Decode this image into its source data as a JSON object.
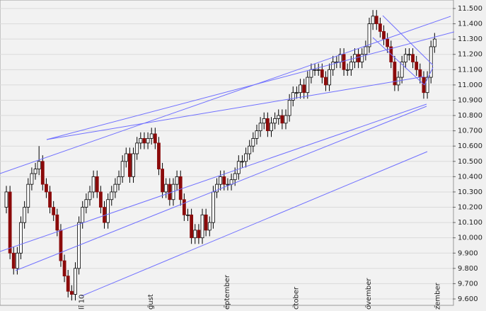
{
  "chart_data": {
    "type": "candlestick",
    "categories": [
      null,
      null,
      null,
      null,
      null,
      null,
      null,
      null,
      null,
      null,
      null,
      null,
      null,
      null,
      null,
      null,
      null,
      null,
      null,
      null,
      "li 10",
      null,
      null,
      null,
      null,
      null,
      null,
      null,
      null,
      null,
      null,
      null,
      null,
      null,
      null,
      null,
      null,
      null,
      null,
      "gust",
      null,
      null,
      null,
      null,
      null,
      null,
      null,
      null,
      null,
      null,
      null,
      null,
      null,
      null,
      null,
      null,
      null,
      null,
      null,
      null,
      "eptember",
      null,
      null,
      null,
      null,
      null,
      null,
      null,
      null,
      null,
      null,
      null,
      null,
      null,
      null,
      null,
      null,
      null,
      null,
      "ctober",
      null,
      null,
      null,
      null,
      null,
      null,
      null,
      null,
      null,
      null,
      null,
      null,
      null,
      null,
      null,
      null,
      null,
      null,
      null,
      "ovember",
      null,
      null,
      null,
      null,
      null,
      null,
      null,
      null,
      null,
      null,
      null,
      null,
      null,
      null,
      null,
      null,
      null,
      null,
      "zember"
    ],
    "open": [
      10.2,
      10.3,
      9.9,
      9.8,
      9.9,
      10.1,
      10.2,
      10.35,
      10.42,
      10.45,
      10.5,
      10.35,
      10.3,
      10.2,
      10.15,
      10.05,
      9.85,
      9.75,
      9.65,
      9.63,
      9.8,
      10.1,
      10.2,
      10.25,
      10.3,
      10.4,
      10.3,
      10.2,
      10.1,
      10.25,
      10.3,
      10.35,
      10.4,
      10.5,
      10.55,
      10.4,
      10.55,
      10.62,
      10.65,
      10.62,
      10.65,
      10.68,
      10.62,
      10.45,
      10.3,
      10.35,
      10.25,
      10.35,
      10.4,
      10.25,
      10.15,
      10.15,
      10.0,
      10.05,
      10.0,
      10.15,
      10.05,
      10.1,
      10.3,
      10.35,
      10.4,
      10.35,
      10.35,
      10.38,
      10.42,
      10.5,
      10.5,
      10.55,
      10.6,
      10.65,
      10.7,
      10.75,
      10.78,
      10.7,
      10.75,
      10.78,
      10.8,
      10.75,
      10.8,
      10.9,
      10.95,
      10.95,
      11.0,
      10.95,
      11.05,
      11.1,
      11.1,
      11.1,
      11.05,
      11.0,
      11.1,
      11.15,
      11.15,
      11.2,
      11.1,
      11.1,
      11.15,
      11.2,
      11.15,
      11.2,
      11.25,
      11.4,
      11.45,
      11.4,
      11.35,
      11.3,
      11.25,
      11.15,
      11.0,
      11.05,
      11.15,
      11.2,
      11.2,
      11.15,
      11.1,
      11.05,
      10.95,
      11.05,
      11.25
    ],
    "high": [
      10.34,
      10.34,
      9.94,
      9.94,
      10.14,
      10.24,
      10.39,
      10.46,
      10.49,
      10.6,
      10.54,
      10.39,
      10.34,
      10.24,
      10.19,
      10.09,
      9.89,
      9.79,
      9.69,
      9.84,
      10.14,
      10.24,
      10.29,
      10.34,
      10.44,
      10.44,
      10.34,
      10.24,
      10.29,
      10.34,
      10.39,
      10.44,
      10.54,
      10.59,
      10.59,
      10.59,
      10.66,
      10.69,
      10.69,
      10.69,
      10.72,
      10.72,
      10.66,
      10.49,
      10.39,
      10.39,
      10.39,
      10.44,
      10.44,
      10.29,
      10.19,
      10.19,
      10.09,
      10.09,
      10.19,
      10.19,
      10.14,
      10.34,
      10.39,
      10.44,
      10.44,
      10.39,
      10.42,
      10.46,
      10.54,
      10.54,
      10.59,
      10.64,
      10.69,
      10.74,
      10.79,
      10.82,
      10.82,
      10.79,
      10.82,
      10.84,
      10.84,
      10.84,
      10.94,
      10.99,
      10.99,
      11.04,
      11.04,
      11.09,
      11.14,
      11.14,
      11.14,
      11.14,
      11.09,
      11.14,
      11.19,
      11.19,
      11.24,
      11.24,
      11.14,
      11.19,
      11.24,
      11.24,
      11.24,
      11.29,
      11.44,
      11.49,
      11.49,
      11.44,
      11.39,
      11.34,
      11.29,
      11.19,
      11.09,
      11.19,
      11.24,
      11.24,
      11.24,
      11.19,
      11.14,
      11.09,
      11.09,
      11.29,
      11.34
    ],
    "low": [
      10.16,
      9.86,
      9.76,
      9.76,
      9.86,
      10.06,
      10.16,
      10.31,
      10.38,
      10.41,
      10.31,
      10.26,
      10.16,
      10.11,
      10.01,
      9.81,
      9.71,
      9.61,
      9.59,
      9.59,
      9.76,
      10.06,
      10.16,
      10.21,
      10.26,
      10.26,
      10.16,
      10.06,
      10.06,
      10.21,
      10.26,
      10.31,
      10.36,
      10.46,
      10.36,
      10.36,
      10.51,
      10.58,
      10.58,
      10.58,
      10.61,
      10.58,
      10.41,
      10.26,
      10.26,
      10.21,
      10.21,
      10.31,
      10.21,
      10.11,
      10.11,
      9.96,
      9.96,
      9.96,
      9.96,
      10.01,
      10.01,
      10.06,
      10.26,
      10.31,
      10.31,
      10.31,
      10.31,
      10.34,
      10.38,
      10.46,
      10.46,
      10.51,
      10.56,
      10.61,
      10.66,
      10.71,
      10.66,
      10.66,
      10.71,
      10.74,
      10.71,
      10.71,
      10.76,
      10.86,
      10.91,
      10.91,
      10.91,
      10.91,
      11.01,
      11.06,
      11.06,
      11.01,
      10.96,
      10.96,
      11.06,
      11.11,
      11.11,
      11.06,
      11.06,
      11.06,
      11.11,
      11.11,
      11.11,
      11.16,
      11.21,
      11.36,
      11.36,
      11.31,
      11.26,
      11.21,
      11.11,
      10.96,
      10.96,
      11.01,
      11.11,
      11.16,
      11.11,
      11.06,
      11.01,
      10.91,
      10.91,
      11.01,
      11.21
    ],
    "close": [
      10.3,
      9.9,
      9.8,
      9.9,
      10.1,
      10.2,
      10.35,
      10.42,
      10.45,
      10.5,
      10.35,
      10.3,
      10.2,
      10.15,
      10.05,
      9.85,
      9.75,
      9.65,
      9.63,
      9.8,
      10.1,
      10.2,
      10.25,
      10.3,
      10.4,
      10.3,
      10.2,
      10.1,
      10.25,
      10.3,
      10.35,
      10.4,
      10.5,
      10.55,
      10.4,
      10.55,
      10.62,
      10.65,
      10.62,
      10.65,
      10.68,
      10.62,
      10.45,
      10.3,
      10.35,
      10.25,
      10.35,
      10.4,
      10.25,
      10.15,
      10.15,
      10.0,
      10.05,
      10.0,
      10.15,
      10.05,
      10.1,
      10.3,
      10.35,
      10.4,
      10.35,
      10.35,
      10.38,
      10.42,
      10.5,
      10.5,
      10.55,
      10.6,
      10.65,
      10.7,
      10.75,
      10.78,
      10.7,
      10.75,
      10.78,
      10.8,
      10.75,
      10.8,
      10.9,
      10.95,
      10.95,
      11.0,
      10.95,
      11.05,
      11.1,
      11.1,
      11.1,
      11.05,
      11.0,
      11.1,
      11.15,
      11.15,
      11.2,
      11.1,
      11.1,
      11.15,
      11.2,
      11.15,
      11.2,
      11.25,
      11.4,
      11.45,
      11.4,
      11.35,
      11.3,
      11.25,
      11.15,
      11.0,
      11.05,
      11.15,
      11.2,
      11.2,
      11.15,
      11.1,
      11.05,
      10.95,
      11.05,
      11.25,
      11.3
    ],
    "up_color": "#ffffff",
    "down_color": "#8b0a0a",
    "wick_color": "#000000",
    "ylim": [
      9.6,
      11.5
    ],
    "yticks": [
      {
        "value": 9.6,
        "label": "9.600"
      },
      {
        "value": 9.7,
        "label": "9.700"
      },
      {
        "value": 9.8,
        "label": "9.800"
      },
      {
        "value": 9.9,
        "label": "9.900"
      },
      {
        "value": 10.0,
        "label": "10.000"
      },
      {
        "value": 10.1,
        "label": "10.100"
      },
      {
        "value": 10.2,
        "label": "10.200"
      },
      {
        "value": 10.3,
        "label": "10.300"
      },
      {
        "value": 10.4,
        "label": "10.400"
      },
      {
        "value": 10.5,
        "label": "10.500"
      },
      {
        "value": 10.6,
        "label": "10.600"
      },
      {
        "value": 10.7,
        "label": "10.700"
      },
      {
        "value": 10.8,
        "label": "10.800"
      },
      {
        "value": 10.9,
        "label": "10.900"
      },
      {
        "value": 11.0,
        "label": "11.000"
      },
      {
        "value": 11.1,
        "label": "11.100"
      },
      {
        "value": 11.2,
        "label": "11.200"
      },
      {
        "value": 11.3,
        "label": "11.300"
      },
      {
        "value": 11.4,
        "label": "11.400"
      },
      {
        "value": 11.5,
        "label": "11.500"
      }
    ],
    "y_axis_side": "right",
    "grid": true
  }
}
